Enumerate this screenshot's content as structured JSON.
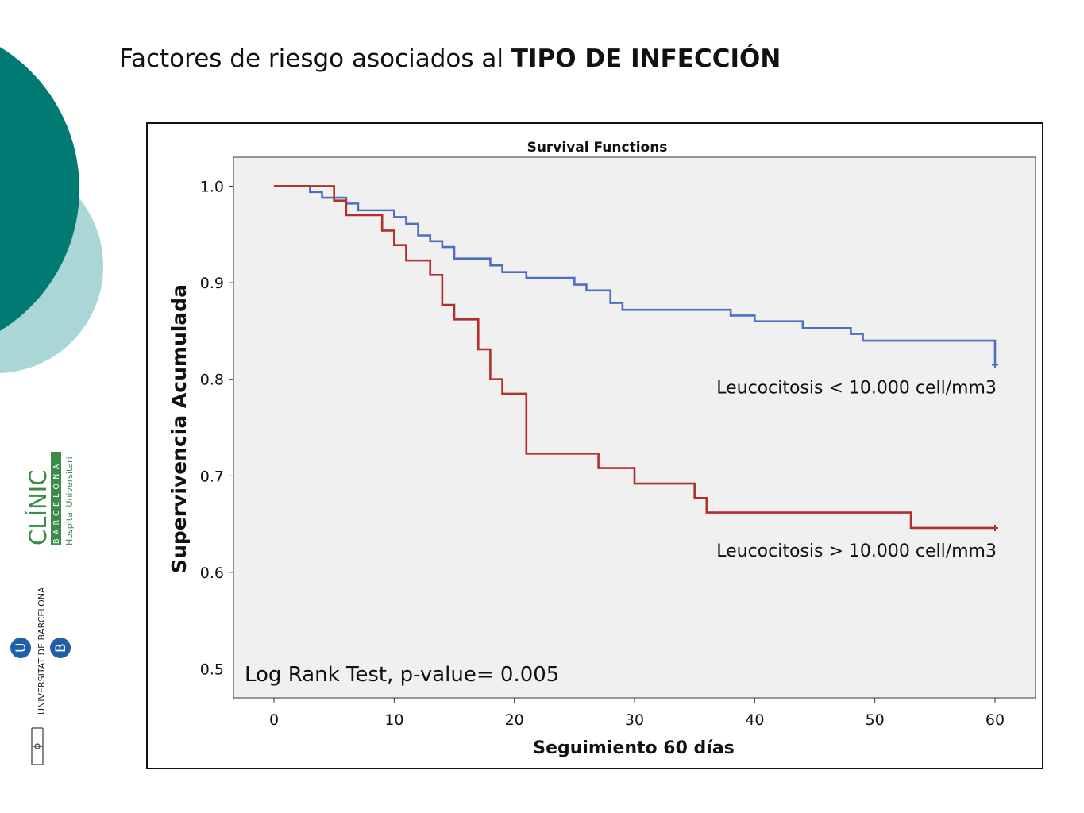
{
  "slide": {
    "title_prefix": "Factores de riesgo asociados al ",
    "title_bold": "TIPO DE INFECCIÓN"
  },
  "logos": {
    "clinic": {
      "word": "CLÍNIC",
      "city": "BARCELONA",
      "sub": "Hospital Universitari"
    },
    "ub": {
      "text": "UNIVERSITAT DE BARCELONA",
      "letter_u": "U",
      "letter_b": "B"
    }
  },
  "colors": {
    "teal_dark": "#007a72",
    "teal_light": "#a9d6d6",
    "clinic_green": "#3d8a4a",
    "ub_blue": "#1f5ea8"
  },
  "chart_data": {
    "type": "line",
    "title": "Survival Functions",
    "xlabel": "Seguimiento 60 días",
    "ylabel": "Supervivencia Acumulada",
    "xlim": [
      0,
      60
    ],
    "ylim": [
      0.47,
      1.03
    ],
    "xticks": [
      0,
      10,
      20,
      30,
      40,
      50,
      60
    ],
    "yticks": [
      0.5,
      0.6,
      0.7,
      0.8,
      0.9,
      1.0
    ],
    "ytick_labels": [
      "0.5",
      "0.6",
      "0.7",
      "0.8",
      "0.9",
      "1.0"
    ],
    "annotation": "Log Rank Test, p-value= 0.005",
    "step": true,
    "series": [
      {
        "name": "Leucocitosis < 10.000 cell/mm3",
        "color": "#4e6fbf",
        "x": [
          0,
          3,
          4,
          6,
          7,
          10,
          11,
          12,
          13,
          14,
          15,
          18,
          19,
          21,
          25,
          26,
          28,
          29,
          38,
          40,
          44,
          48,
          49,
          60
        ],
        "y": [
          1.0,
          0.994,
          0.988,
          0.982,
          0.975,
          0.968,
          0.961,
          0.949,
          0.943,
          0.937,
          0.925,
          0.918,
          0.911,
          0.905,
          0.898,
          0.892,
          0.879,
          0.872,
          0.866,
          0.86,
          0.853,
          0.847,
          0.84,
          0.815
        ],
        "censor": [
          [
            60,
            0.815
          ]
        ]
      },
      {
        "name": "Leucocitosis > 10.000 cell/mm3",
        "color": "#b0312c",
        "x": [
          0,
          5,
          6,
          7,
          9,
          10,
          11,
          13,
          14,
          15,
          17,
          18,
          19,
          21,
          27,
          30,
          35,
          36,
          53,
          60
        ],
        "y": [
          1.0,
          0.985,
          0.97,
          0.97,
          0.954,
          0.939,
          0.923,
          0.908,
          0.877,
          0.862,
          0.831,
          0.8,
          0.785,
          0.723,
          0.708,
          0.692,
          0.677,
          0.662,
          0.646,
          0.646
        ],
        "censor": [
          [
            60,
            0.646
          ]
        ]
      }
    ]
  }
}
